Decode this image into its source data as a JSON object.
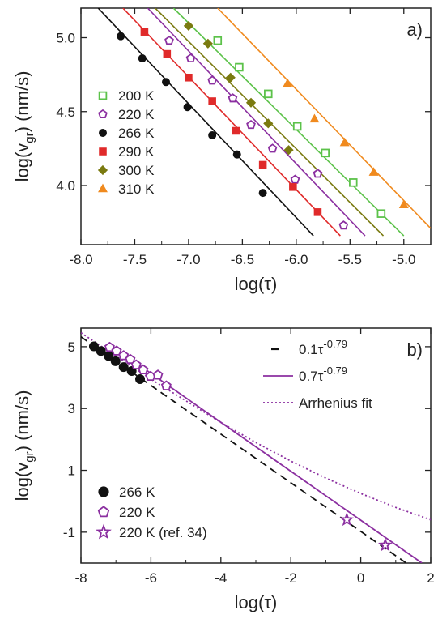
{
  "chart_data": [
    {
      "panel_label": "a)",
      "type": "scatter",
      "xlabel": "log(τ)",
      "ylabel_base": "log(v",
      "ylabel_sub": "gr",
      "ylabel_tail": ") (nm/s)",
      "xlim": [
        -8.0,
        -4.75
      ],
      "ylim": [
        3.6,
        5.2
      ],
      "xticks": [
        -8.0,
        -7.5,
        -7.0,
        -6.5,
        -6.0,
        -5.5,
        -5.0
      ],
      "yticks": [
        4.0,
        4.5,
        5.0
      ],
      "legend_position": "center-left",
      "series": [
        {
          "name": "200 K",
          "marker": "open-square",
          "color": "#5cc24a",
          "x": [
            -6.73,
            -6.53,
            -6.26,
            -5.99,
            -5.73,
            -5.47,
            -5.21
          ],
          "y": [
            4.98,
            4.8,
            4.62,
            4.4,
            4.22,
            4.02,
            3.81
          ],
          "fit": {
            "x": [
              -7.14,
              -5.0
            ],
            "y": [
              5.2,
              3.66
            ]
          }
        },
        {
          "name": "220 K",
          "marker": "open-pentagon",
          "color": "#8b2fa0",
          "x": [
            -7.18,
            -6.98,
            -6.78,
            -6.59,
            -6.42,
            -6.22,
            -6.01,
            -5.8,
            -5.56
          ],
          "y": [
            4.98,
            4.86,
            4.71,
            4.59,
            4.41,
            4.25,
            4.04,
            4.08,
            3.73
          ],
          "fit": {
            "x": [
              -7.38,
              -5.36
            ],
            "y": [
              5.2,
              3.66
            ]
          }
        },
        {
          "name": "266 K",
          "marker": "filled-circle",
          "color": "#111111",
          "x": [
            -7.63,
            -7.43,
            -7.21,
            -7.01,
            -6.78,
            -6.55,
            -6.31
          ],
          "y": [
            5.01,
            4.86,
            4.7,
            4.53,
            4.34,
            4.21,
            3.95
          ],
          "fit": {
            "x": [
              -7.84,
              -5.84
            ],
            "y": [
              5.2,
              3.66
            ]
          }
        },
        {
          "name": "290 K",
          "marker": "filled-square",
          "color": "#e02a2a",
          "x": [
            -7.41,
            -7.2,
            -7.0,
            -6.78,
            -6.56,
            -6.31,
            -6.03,
            -5.8
          ],
          "y": [
            5.04,
            4.89,
            4.73,
            4.57,
            4.37,
            4.14,
            3.99,
            3.82
          ],
          "fit": {
            "x": [
              -7.61,
              -5.59
            ],
            "y": [
              5.2,
              3.66
            ]
          }
        },
        {
          "name": "300 K",
          "marker": "filled-diamond",
          "color": "#7a7a10",
          "x": [
            -7.0,
            -6.82,
            -6.61,
            -6.42,
            -6.26,
            -6.07
          ],
          "y": [
            5.08,
            4.96,
            4.73,
            4.56,
            4.42,
            4.24
          ],
          "fit": {
            "x": [
              -7.31,
              -5.19
            ],
            "y": [
              5.2,
              3.66
            ]
          }
        },
        {
          "name": "310 K",
          "marker": "filled-triangle",
          "color": "#f08a1e",
          "x": [
            -6.08,
            -5.83,
            -5.55,
            -5.28,
            -5.0
          ],
          "y": [
            4.69,
            4.45,
            4.29,
            4.09,
            3.87
          ],
          "fit": {
            "x": [
              -6.73,
              -4.75
            ],
            "y": [
              5.2,
              3.71
            ]
          }
        }
      ]
    },
    {
      "panel_label": "b)",
      "type": "scatter",
      "xlabel": "log(τ)",
      "ylabel_base": "log(v",
      "ylabel_sub": "gr",
      "ylabel_tail": ") (nm/s)",
      "xlim": [
        -8,
        2
      ],
      "ylim": [
        -2,
        5.6
      ],
      "xticks": [
        -8,
        -6,
        -4,
        -2,
        0,
        2
      ],
      "yticks": [
        -1,
        1,
        3,
        5
      ],
      "legend_top_position": "top-right",
      "legend_bottom_position": "bottom-left",
      "lines": [
        {
          "name": "0.1τ",
          "exp": "-0.79",
          "style": "dashed",
          "color": "#111111",
          "x": [
            -8.0,
            1.3
          ],
          "y": [
            5.32,
            -2.0
          ]
        },
        {
          "name": "0.7τ",
          "exp": "-0.79",
          "style": "solid",
          "color": "#8b2fa0",
          "x": [
            -7.0,
            1.75
          ],
          "y": [
            4.93,
            -2.0
          ]
        },
        {
          "name": "Arrhenius fit",
          "style": "dotted",
          "color": "#8b2fa0",
          "x": [
            -8,
            -7,
            -6,
            -5,
            -4,
            -3,
            -2,
            -1,
            0,
            1,
            2
          ],
          "y": [
            5.45,
            4.7,
            3.95,
            3.25,
            2.55,
            1.9,
            1.3,
            0.75,
            0.25,
            -0.2,
            -0.6
          ]
        }
      ],
      "series": [
        {
          "name": "266 K",
          "marker": "filled-circle",
          "color": "#111111",
          "x": [
            -7.63,
            -7.43,
            -7.21,
            -7.01,
            -6.78,
            -6.55,
            -6.31
          ],
          "y": [
            5.01,
            4.86,
            4.7,
            4.53,
            4.34,
            4.21,
            3.95
          ]
        },
        {
          "name": "220 K",
          "marker": "open-pentagon",
          "color": "#8b2fa0",
          "x": [
            -7.18,
            -6.98,
            -6.78,
            -6.59,
            -6.42,
            -6.22,
            -6.01,
            -5.8,
            -5.56
          ],
          "y": [
            4.98,
            4.86,
            4.71,
            4.59,
            4.41,
            4.25,
            4.04,
            4.08,
            3.73
          ]
        },
        {
          "name": "220 K (ref. 34)",
          "marker": "open-star",
          "color": "#8b2fa0",
          "x": [
            -0.4,
            0.7
          ],
          "y": [
            -0.6,
            -1.42
          ]
        }
      ]
    }
  ]
}
